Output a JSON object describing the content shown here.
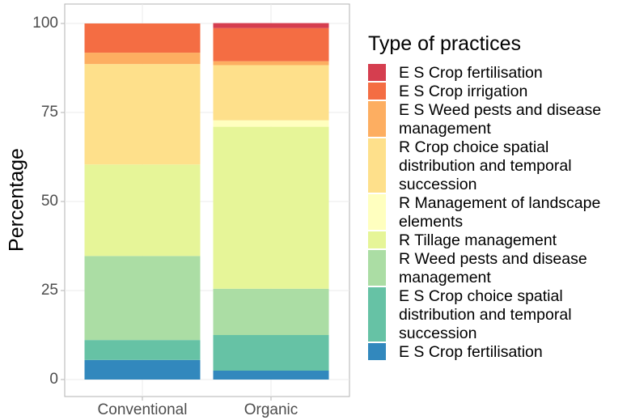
{
  "chart_data": {
    "type": "stacked_bar",
    "y_label": "Percentage",
    "legend_title": "Type of practices",
    "categories": [
      "Conventional",
      "Organic"
    ],
    "ylim": [
      0,
      100
    ],
    "yticks": [
      0,
      25,
      50,
      75,
      100
    ],
    "grid": true,
    "series": [
      {
        "name": "E S Crop fertilisation",
        "color": "#d53e4f",
        "values": [
          0,
          1.4
        ]
      },
      {
        "name": "E S Crop irrigation",
        "color": "#f46d43",
        "values": [
          8.2,
          9.3
        ]
      },
      {
        "name": "E S Weed pests and disease management",
        "color": "#fdae61",
        "values": [
          3.2,
          1.1
        ]
      },
      {
        "name": "R Crop choice spatial distribution and temporal succession",
        "color": "#fee08b",
        "values": [
          28.2,
          15.5
        ]
      },
      {
        "name": "R Management of landscape elements",
        "color": "#ffffbf",
        "values": [
          0,
          1.8
        ]
      },
      {
        "name": "R Tillage management",
        "color": "#e6f598",
        "values": [
          25.7,
          45.5
        ]
      },
      {
        "name": "R Weed pests and disease management",
        "color": "#abdda4",
        "values": [
          23.6,
          13
        ]
      },
      {
        "name": "E S Crop choice spatial distribution and temporal succession",
        "color": "#66c2a5",
        "values": [
          5.6,
          10
        ]
      },
      {
        "name": "E S Crop fertilisation",
        "color": "#3288bd",
        "values": [
          5.5,
          2.5
        ]
      }
    ]
  }
}
